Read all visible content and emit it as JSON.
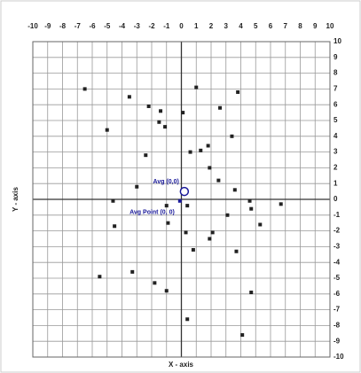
{
  "chart_data": {
    "type": "scatter",
    "xlabel": "X - axis",
    "ylabel": "Y - axis",
    "xlim": [
      -10,
      10
    ],
    "ylim": [
      -10,
      10
    ],
    "xticks": [
      -10,
      -9,
      -8,
      -7,
      -6,
      -5,
      -4,
      -3,
      -2,
      -1,
      0,
      1,
      2,
      3,
      4,
      5,
      6,
      7,
      8,
      9,
      10
    ],
    "yticks": [
      -10,
      -9,
      -8,
      -7,
      -6,
      -5,
      -4,
      -3,
      -2,
      -1,
      0,
      1,
      2,
      3,
      4,
      5,
      6,
      7,
      8,
      9,
      10
    ],
    "grid": true,
    "series": [
      {
        "color": "#222222",
        "x": [
          -6.5,
          1.0,
          -3.5,
          3.8,
          -2.2,
          -1.4,
          0.1,
          2.6,
          -1.5,
          -1.1,
          -5.0,
          3.4,
          1.8,
          0.6,
          1.3,
          -2.4,
          1.9,
          2.5,
          -3.0,
          3.6,
          -4.6,
          4.6,
          6.7,
          -1.0,
          0.4,
          3.1,
          4.7,
          5.3,
          -4.5,
          -0.9,
          0.3,
          2.1,
          1.9,
          0.8,
          3.7,
          -3.3,
          -5.5,
          -1.8,
          -1.0,
          4.7,
          0.4,
          4.1
        ],
        "values": [
          7.0,
          7.1,
          6.5,
          6.8,
          5.9,
          5.6,
          5.5,
          5.8,
          4.9,
          4.6,
          4.4,
          4.0,
          3.4,
          3.0,
          3.1,
          2.8,
          2.0,
          1.2,
          0.8,
          0.6,
          -0.1,
          -0.1,
          -0.3,
          -0.4,
          -0.4,
          -1.0,
          -0.6,
          -1.6,
          -1.7,
          -1.5,
          -2.1,
          -2.1,
          -2.5,
          -3.2,
          -3.3,
          -4.6,
          -4.9,
          -5.3,
          -5.8,
          -5.9,
          -7.6,
          -8.6
        ]
      },
      {
        "color": "#1a1a9a",
        "x": [
          0.2,
          -0.1
        ],
        "values": [
          0.5,
          -0.1
        ]
      }
    ],
    "annotations": [
      "Avg (0,0)",
      "Avg Point (0, 0)"
    ]
  }
}
